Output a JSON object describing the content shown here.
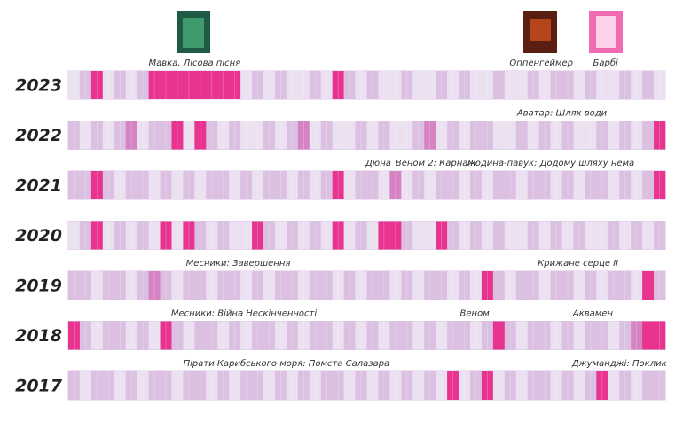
{
  "chart_data": {
    "type": "heatmap",
    "xlim": [
      0,
      52
    ],
    "colors": [
      "#ebe1f1",
      "#dcc0e2",
      "#d683c4",
      "#e8338f"
    ],
    "rows": [
      {
        "name": "2023",
        "values": [
          0,
          1,
          3,
          0,
          1,
          0,
          1,
          3,
          3,
          3,
          3,
          3,
          3,
          3,
          3,
          0,
          1,
          0,
          1,
          0,
          0,
          1,
          0,
          3,
          1,
          0,
          1,
          0,
          0,
          1,
          0,
          0,
          1,
          0,
          1,
          0,
          0,
          1,
          0,
          0,
          1,
          0,
          1,
          1,
          0,
          1,
          0,
          0,
          1,
          0,
          1,
          0
        ],
        "annotations": [
          {
            "text": "Мавка. Лісова пісня",
            "x": 11
          },
          {
            "text": "Оппенгеймер",
            "x": 41.2
          },
          {
            "text": "Барбі",
            "x": 46.8
          }
        ]
      },
      {
        "name": "2022",
        "values": [
          1,
          0,
          1,
          0,
          1,
          2,
          0,
          1,
          1,
          3,
          0,
          3,
          1,
          0,
          1,
          0,
          0,
          1,
          0,
          1,
          2,
          0,
          1,
          0,
          0,
          1,
          0,
          1,
          0,
          0,
          1,
          2,
          0,
          1,
          0,
          1,
          1,
          0,
          0,
          1,
          0,
          1,
          0,
          1,
          0,
          0,
          1,
          0,
          1,
          0,
          1,
          3
        ],
        "annotations": [
          {
            "text": "Аватар: Шлях води",
            "x": 43
          }
        ]
      },
      {
        "name": "2021",
        "values": [
          1,
          1,
          3,
          1,
          0,
          1,
          1,
          0,
          1,
          0,
          1,
          0,
          1,
          1,
          0,
          1,
          0,
          1,
          1,
          0,
          1,
          0,
          1,
          3,
          0,
          1,
          1,
          0,
          2,
          0,
          1,
          0,
          1,
          1,
          0,
          1,
          0,
          1,
          1,
          0,
          1,
          1,
          0,
          1,
          0,
          1,
          1,
          0,
          1,
          0,
          1,
          3
        ],
        "annotations": [
          {
            "text": "Дюна",
            "x": 27
          },
          {
            "text": "Веном 2: Карнаж",
            "x": 32
          },
          {
            "text": "Людина-павук: Додому шляху нема",
            "x": 42
          }
        ]
      },
      {
        "name": "2020",
        "values": [
          0,
          1,
          3,
          0,
          1,
          0,
          1,
          0,
          3,
          0,
          3,
          1,
          0,
          1,
          0,
          0,
          3,
          1,
          0,
          1,
          0,
          1,
          0,
          3,
          0,
          1,
          0,
          3,
          3,
          1,
          0,
          0,
          3,
          1,
          0,
          1,
          0,
          1,
          0,
          0,
          1,
          0,
          1,
          0,
          1,
          0,
          0,
          1,
          0,
          1,
          0,
          1
        ],
        "annotations": []
      },
      {
        "name": "2019",
        "values": [
          1,
          1,
          0,
          1,
          1,
          0,
          1,
          2,
          1,
          0,
          1,
          1,
          0,
          1,
          1,
          0,
          1,
          0,
          1,
          1,
          0,
          1,
          1,
          0,
          1,
          0,
          1,
          1,
          0,
          1,
          0,
          1,
          1,
          0,
          1,
          0,
          3,
          1,
          0,
          1,
          1,
          0,
          1,
          1,
          0,
          1,
          0,
          1,
          1,
          0,
          3,
          1
        ],
        "annotations": [
          {
            "text": "Месники: Завершення",
            "x": 14.8
          },
          {
            "text": "Крижане серце II",
            "x": 44.4
          }
        ]
      },
      {
        "name": "2018",
        "values": [
          3,
          1,
          0,
          1,
          1,
          0,
          1,
          0,
          3,
          1,
          0,
          1,
          1,
          0,
          1,
          0,
          1,
          1,
          0,
          1,
          0,
          1,
          1,
          0,
          1,
          0,
          1,
          0,
          1,
          1,
          0,
          1,
          0,
          1,
          1,
          0,
          1,
          3,
          1,
          0,
          1,
          1,
          0,
          1,
          0,
          1,
          1,
          0,
          1,
          2,
          3,
          3
        ],
        "annotations": [
          {
            "text": "Месники: Війна Нескінченності",
            "x": 15.3
          },
          {
            "text": "Веном",
            "x": 35.4
          },
          {
            "text": "Аквамен",
            "x": 45.7
          }
        ]
      },
      {
        "name": "2017",
        "values": [
          1,
          0,
          1,
          1,
          0,
          1,
          0,
          1,
          1,
          0,
          1,
          1,
          0,
          1,
          0,
          1,
          1,
          0,
          1,
          0,
          1,
          0,
          1,
          1,
          0,
          1,
          0,
          1,
          0,
          1,
          0,
          1,
          0,
          3,
          0,
          1,
          3,
          0,
          1,
          0,
          1,
          1,
          0,
          1,
          0,
          1,
          3,
          0,
          1,
          0,
          1,
          1
        ],
        "annotations": [
          {
            "text": "Пірати Карибського моря: Помста Салазара",
            "x": 19
          },
          {
            "text": "Джуманджі: Поклик",
            "x": 48
          }
        ]
      }
    ]
  }
}
